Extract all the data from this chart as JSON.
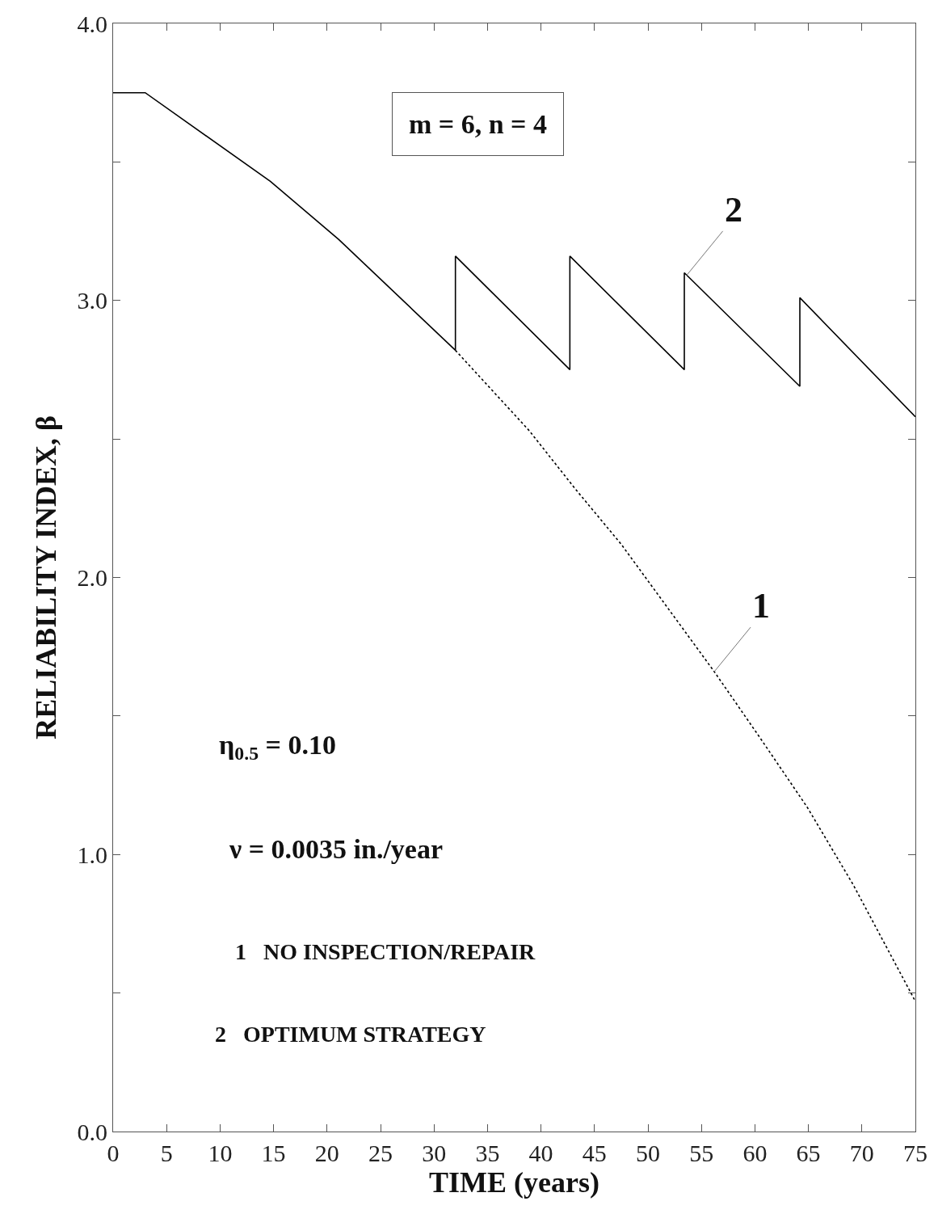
{
  "chart_data": {
    "type": "line",
    "xlabel": "TIME (years)",
    "ylabel": "RELIABILITY INDEX, β",
    "xlim": [
      0,
      75
    ],
    "xticks": [
      0,
      5,
      10,
      15,
      20,
      25,
      30,
      35,
      40,
      45,
      50,
      55,
      60,
      65,
      70,
      75
    ],
    "ylim": [
      0,
      4
    ],
    "yticks": [
      {
        "value": 0,
        "label": "0.0"
      },
      {
        "value": 0.5,
        "label": null
      },
      {
        "value": 1,
        "label": "1.0"
      },
      {
        "value": 1.5,
        "label": null
      },
      {
        "value": 2,
        "label": "2.0"
      },
      {
        "value": 2.5,
        "label": null
      },
      {
        "value": 3,
        "label": "3.0"
      },
      {
        "value": 3.5,
        "label": null
      },
      {
        "value": 4,
        "label": "4.0"
      }
    ],
    "series": [
      {
        "color": "#000000",
        "line_style": "dotted",
        "x": [
          32,
          38.9,
          43.2,
          47.5,
          56.2,
          60.5,
          64.9,
          69.2,
          75
        ],
        "values": [
          2.82,
          2.53,
          2.32,
          2.12,
          1.66,
          1.42,
          1.17,
          0.89,
          0.47
        ]
      },
      {
        "color": "#000000",
        "line_style": "solid",
        "x": [
          0,
          3,
          14.7,
          21.1,
          32,
          32,
          42.7,
          42.7,
          53.4,
          53.4,
          64.2,
          64.2,
          75
        ],
        "values": [
          3.75,
          3.75,
          3.43,
          3.22,
          2.82,
          3.16,
          2.75,
          3.16,
          2.75,
          3.1,
          2.69,
          3.01,
          2.58
        ]
      }
    ],
    "annotations": [
      "m = 6, n = 4",
      "η$_{0.5}$ = 0.10",
      "ν = 0.0035 in./year",
      "1   NO INSPECTION/REPAIR",
      "2   OPTIMUM STRATEGY",
      {
        "text": "1",
        "x": 56.2,
        "y": 1.66
      },
      {
        "text": "2",
        "x": 53.6,
        "y": 3.09
      }
    ]
  }
}
